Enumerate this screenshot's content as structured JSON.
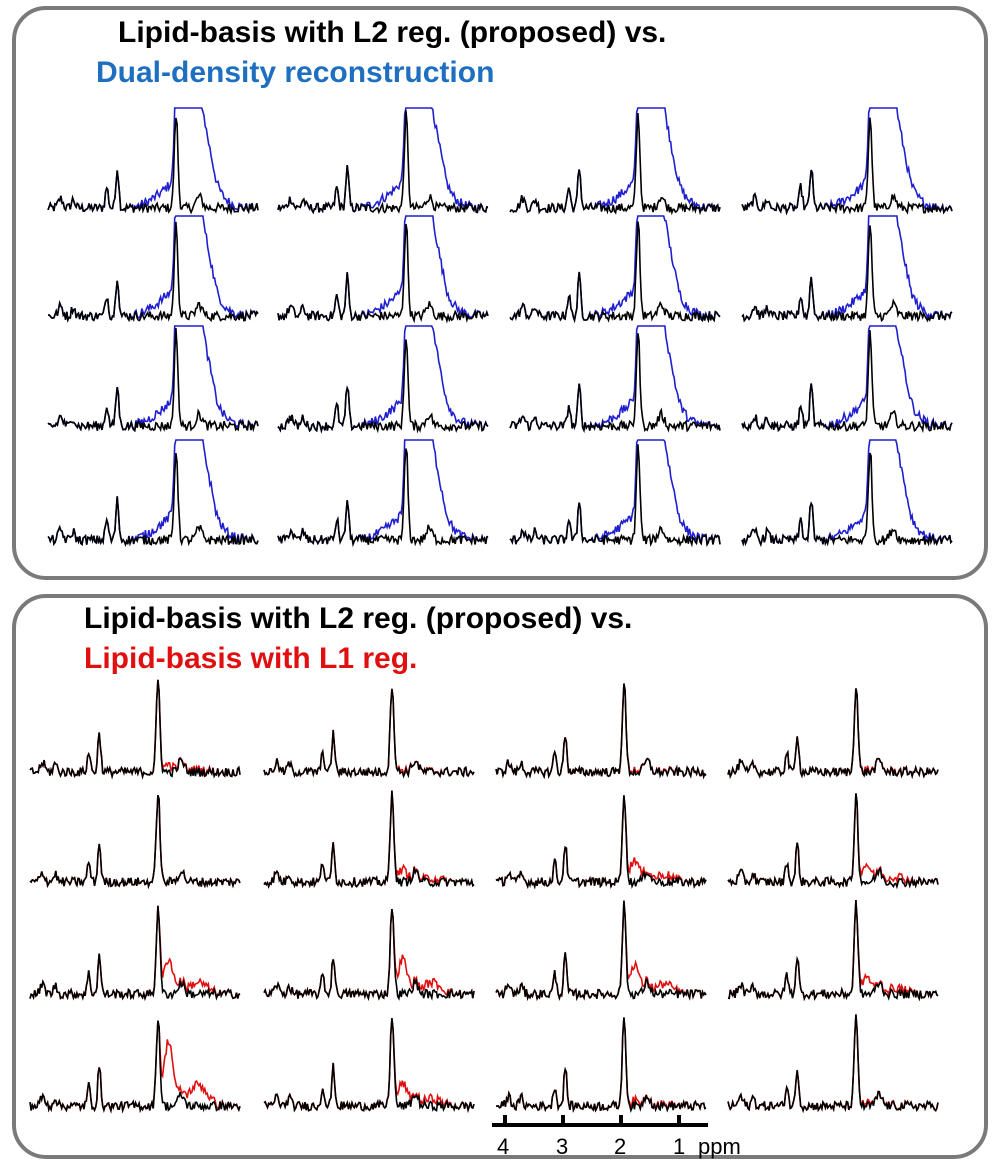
{
  "colors": {
    "proposed": "#000000",
    "dual_density": "#1f1fd0",
    "l1": "#e01010",
    "title_blue": "#1f6fc0",
    "title_red": "#e01010",
    "frame": "#7a7a7a"
  },
  "panels": [
    {
      "title_line1": "Lipid-basis with L2 reg. (proposed) vs.",
      "title_line2": "Dual-density reconstruction"
    },
    {
      "title_line1": "Lipid-basis with L2 reg. (proposed) vs.",
      "title_line2": "Lipid-basis with L1 reg."
    }
  ],
  "axis": {
    "ticks": [
      "4",
      "3",
      "2",
      "1"
    ],
    "unit": "ppm"
  },
  "chart_data": [
    {
      "type": "line",
      "grid_rows": 4,
      "grid_cols": 4,
      "series": [
        {
          "name": "Lipid-basis with L2 reg. (proposed)"
        },
        {
          "name": "Dual-density reconstruction"
        }
      ],
      "x_unit": "ppm",
      "x_ticks": [
        4,
        3,
        2,
        1
      ],
      "peak_ppm": [
        3.9,
        3.2,
        3.0,
        2.0
      ],
      "comparison_lipid_divergence": "strong (comparison trace rises far above proposed between ~2.4 and ~1.0 ppm, exceeding plot top)"
    },
    {
      "type": "line",
      "grid_rows": 4,
      "grid_cols": 4,
      "series": [
        {
          "name": "Lipid-basis with L2 reg. (proposed)"
        },
        {
          "name": "Lipid-basis with L1 reg."
        }
      ],
      "x_unit": "ppm",
      "x_ticks": [
        4,
        3,
        2,
        1
      ],
      "peak_ppm": [
        3.9,
        3.2,
        3.0,
        2.0
      ],
      "comparison_lipid_divergence": "varies by voxel (from negligible in row 1 to large in rows 3-4, columns 1-3)",
      "relative_deviation_grid": [
        [
          0.15,
          0.05,
          0.05,
          0.05
        ],
        [
          0.0,
          0.25,
          0.45,
          0.35
        ],
        [
          0.7,
          0.7,
          0.6,
          0.35
        ],
        [
          1.3,
          0.45,
          0.1,
          0.05
        ]
      ]
    }
  ]
}
